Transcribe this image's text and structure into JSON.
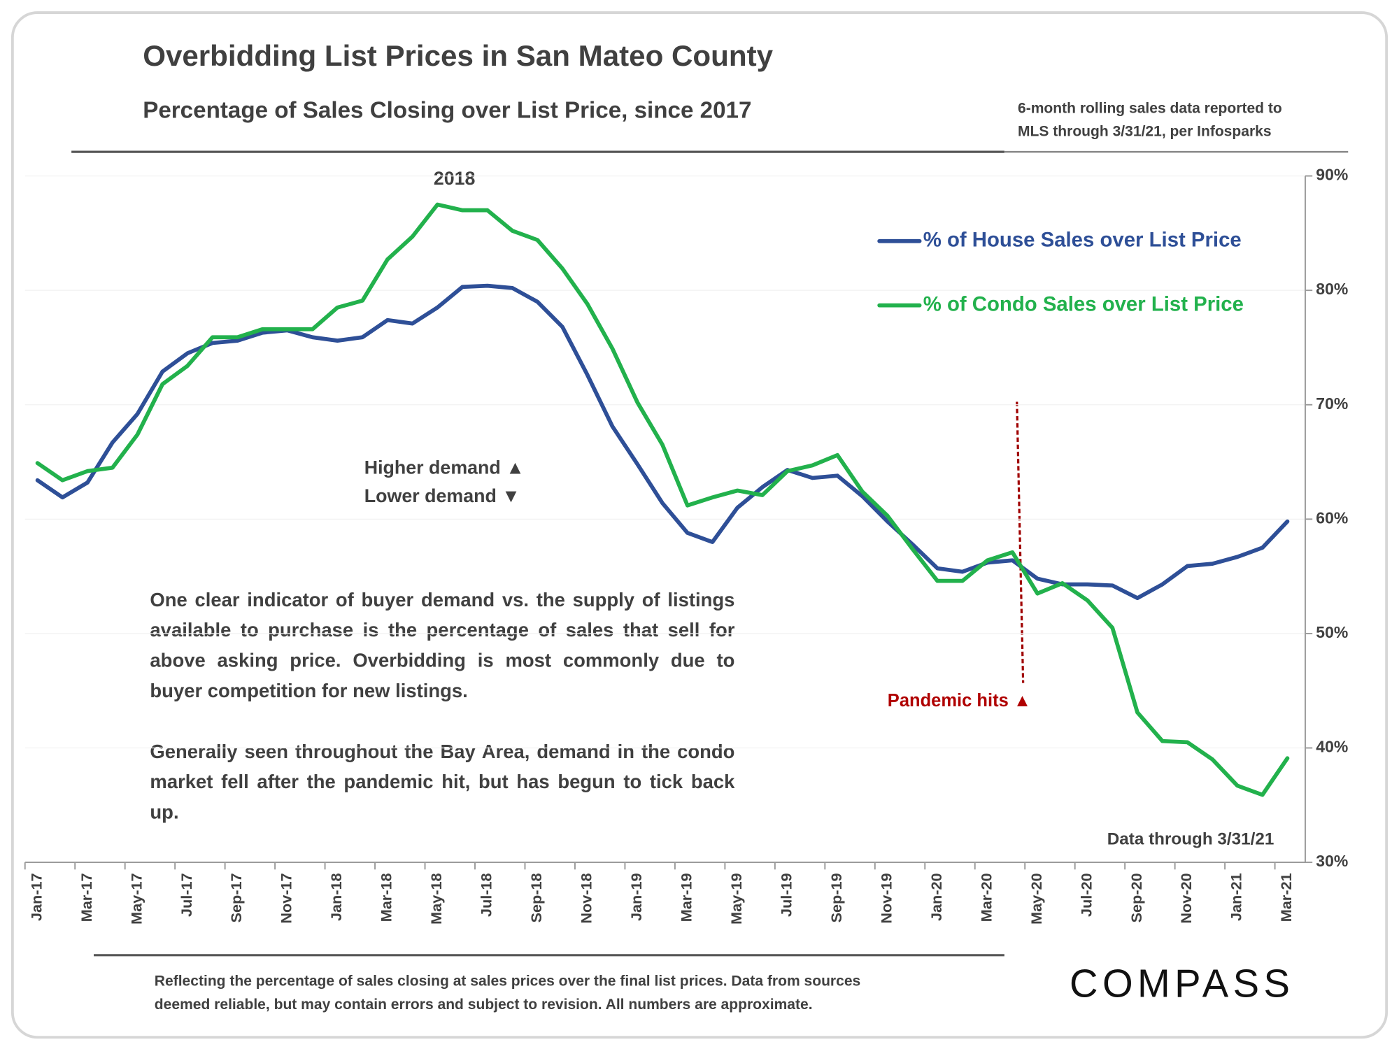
{
  "chart_data": {
    "type": "line",
    "title": "Overbidding List Prices in San Mateo County",
    "subtitle": "Percentage of Sales Closing over List Price, since 2017",
    "source_note": [
      "6-month rolling sales data reported to",
      "MLS through 3/31/21, per Infosparks"
    ],
    "categories": [
      "Jan-17",
      null,
      "Mar-17",
      null,
      "May-17",
      null,
      "Jul-17",
      null,
      "Sep-17",
      null,
      "Nov-17",
      null,
      "Jan-18",
      null,
      "Mar-18",
      null,
      "May-18",
      null,
      "Jul-18",
      null,
      "Sep-18",
      null,
      "Nov-18",
      null,
      "Jan-19",
      null,
      "Mar-19",
      null,
      "May-19",
      null,
      "Jul-19",
      null,
      "Sep-19",
      null,
      "Nov-19",
      null,
      "Jan-20",
      null,
      "Mar-20",
      null,
      "May-20",
      null,
      "Jul-20",
      null,
      "Sep-20",
      null,
      "Nov-20",
      null,
      "Jan-21",
      null,
      "Mar-21"
    ],
    "series": [
      {
        "name": "% of House Sales over List Price",
        "color": "#2e4f97",
        "values": [
          63.4,
          61.9,
          63.2,
          66.7,
          69.2,
          72.9,
          74.5,
          75.4,
          75.6,
          76.3,
          76.5,
          75.9,
          75.6,
          75.9,
          77.4,
          77.1,
          78.5,
          80.3,
          80.4,
          80.2,
          79.0,
          76.8,
          72.6,
          68.1,
          64.8,
          61.4,
          58.8,
          58.0,
          61.0,
          62.8,
          64.3,
          63.6,
          63.8,
          62.0,
          59.8,
          57.8,
          55.7,
          55.4,
          56.2,
          56.4,
          54.8,
          54.3,
          54.3,
          54.2,
          53.1,
          54.3,
          55.9,
          56.1,
          56.7,
          57.5,
          59.8
        ]
      },
      {
        "name": "% of Condo Sales over List Price",
        "color": "#22b14c",
        "values": [
          64.9,
          63.4,
          64.2,
          64.5,
          67.4,
          71.8,
          73.4,
          75.9,
          75.9,
          76.6,
          76.6,
          76.6,
          78.5,
          79.1,
          82.7,
          84.7,
          87.5,
          87.0,
          87.0,
          85.2,
          84.4,
          81.9,
          78.8,
          74.9,
          70.2,
          66.5,
          61.2,
          61.9,
          62.5,
          62.1,
          64.2,
          64.7,
          65.6,
          62.4,
          60.3,
          57.4,
          54.6,
          54.6,
          56.4,
          57.1,
          53.5,
          54.4,
          52.9,
          50.5,
          43.1,
          40.6,
          40.5,
          39.0,
          36.7,
          35.9,
          39.1
        ]
      }
    ],
    "ylim": [
      30,
      90
    ],
    "yticks": [
      {
        "value": 30,
        "label": "30%"
      },
      {
        "value": 40,
        "label": "40%"
      },
      {
        "value": 50,
        "label": "50%"
      },
      {
        "value": 60,
        "label": "60%"
      },
      {
        "value": 70,
        "label": "70%"
      },
      {
        "value": 80,
        "label": "80%"
      },
      {
        "value": 90,
        "label": "90%"
      }
    ],
    "y_axis_side": "right",
    "grid": true,
    "legend": "upper right",
    "annotations": {
      "peak_label": "2018",
      "higher_demand": "Higher demand ▲",
      "lower_demand": "Lower demand ▼",
      "pandemic": "Pandemic hits ▲",
      "data_through": "Data through 3/31/21"
    },
    "description": [
      "One clear indicator of buyer demand vs. the supply of listings available to purchase is the percentage of sales that sell for above asking price. Overbidding is most commonly due to buyer competition for new listings.",
      "Generally seen throughout the Bay Area, demand in the condo market fell after the pandemic hit, but has begun to tick back up."
    ]
  },
  "footer": {
    "note": [
      "Reflecting the percentage of sales closing at sales prices over the final list prices. Data from sources",
      "deemed reliable, but may contain errors and subject to revision. All numbers are approximate."
    ],
    "logo": "COMPASS"
  }
}
